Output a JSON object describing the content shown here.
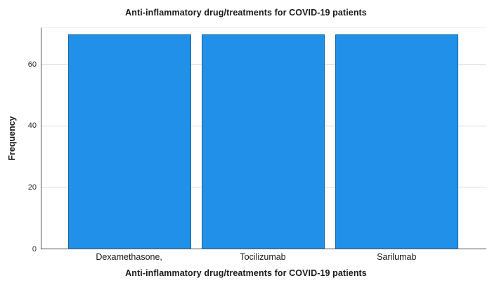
{
  "chart_data": {
    "type": "bar",
    "title": "Anti-inflammatory drug/treatments for COVID-19 patients",
    "xlabel": "Anti-inflammatory drug/treatments for COVID-19 patients",
    "ylabel": "Frequency",
    "categories": [
      "Dexamethasone,",
      "Tocilizumab",
      "Sarilumab"
    ],
    "values": [
      70,
      70,
      70
    ],
    "yticks": [
      0,
      20,
      40,
      60
    ],
    "ylim": [
      0,
      72
    ],
    "grid": "horizontal",
    "legend": "none",
    "colors": {
      "bar": "#2090e8",
      "bar_border": "#2d5a80",
      "axis": "#4d4d4d",
      "grid": "#dedede",
      "text": "#1a1a1a",
      "background": "#ffffff"
    }
  }
}
